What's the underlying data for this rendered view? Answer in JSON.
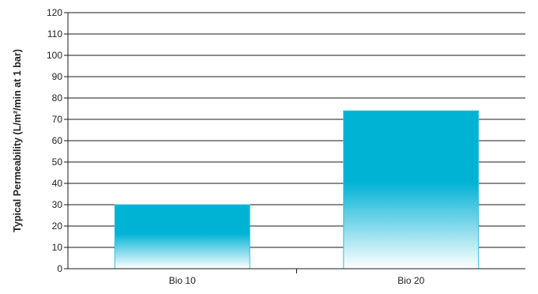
{
  "chart_data": {
    "type": "bar",
    "title": "",
    "xlabel": "",
    "ylabel": "Typical Permeability (L/m²/min at 1 bar)",
    "categories": [
      "Bio 10",
      "Bio 20"
    ],
    "values": [
      30,
      74
    ],
    "ylim": [
      0,
      120
    ],
    "yticks": [
      0,
      10,
      20,
      30,
      40,
      50,
      60,
      70,
      80,
      90,
      100,
      110,
      120
    ],
    "grid": true,
    "legend": "none",
    "colors": {
      "bar_top": "#00b2d4",
      "bar_bottom": "#ffffff",
      "bar_edge": "#35bfe0",
      "grid": "#1a1a1a",
      "axis": "#1a1a1a"
    }
  }
}
